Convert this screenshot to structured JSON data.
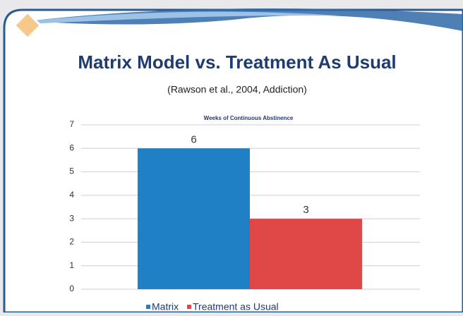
{
  "chart_data": {
    "type": "bar",
    "title": "Matrix Model vs. Treatment As Usual",
    "subtitle": "(Rawson et al., 2004, Addiction)",
    "chart_title": "Weeks of Continuous Abstinence",
    "categories": [
      null
    ],
    "series": [
      {
        "name": "Matrix",
        "color": "#1f80c6",
        "values": [
          6
        ]
      },
      {
        "name": "Treatment as Usual",
        "color": "#e04848",
        "values": [
          3
        ]
      }
    ],
    "ylim": [
      0,
      7
    ],
    "yticks": [
      0,
      1,
      2,
      3,
      4,
      5,
      6,
      7
    ],
    "grid": true,
    "legend": "bottom"
  }
}
